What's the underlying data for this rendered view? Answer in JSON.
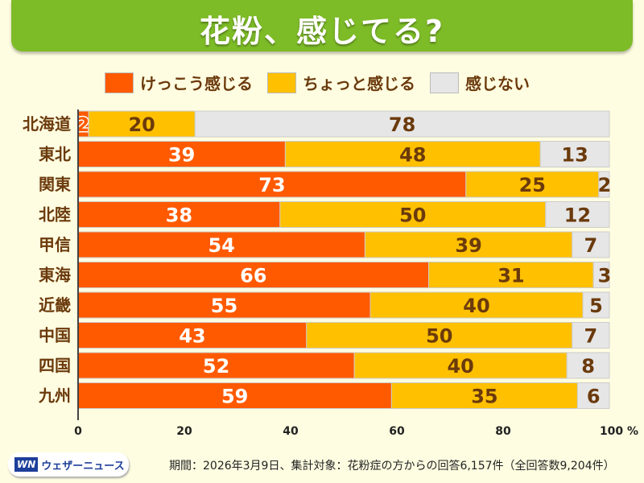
{
  "title": "花粉、感じてる?",
  "chart_data": {
    "type": "bar",
    "orientation": "horizontal",
    "stacked": true,
    "categories": [
      "北海道",
      "東北",
      "関東",
      "北陸",
      "甲信",
      "東海",
      "近畿",
      "中国",
      "四国",
      "九州"
    ],
    "series": [
      {
        "name": "けっこう感じる",
        "color": "#ff5a00",
        "values": [
          2,
          39,
          73,
          38,
          54,
          66,
          55,
          43,
          52,
          59
        ]
      },
      {
        "name": "ちょっと感じる",
        "color": "#ffc000",
        "values": [
          20,
          48,
          25,
          50,
          39,
          31,
          40,
          50,
          40,
          35
        ]
      },
      {
        "name": "感じない",
        "color": "#e6e6e6",
        "values": [
          78,
          13,
          2,
          12,
          7,
          3,
          5,
          7,
          8,
          6
        ]
      }
    ],
    "xlim": [
      0,
      100
    ],
    "xticks": [
      "0",
      "20",
      "40",
      "60",
      "80",
      "100 %"
    ],
    "legend": "top"
  },
  "footer": {
    "logo": "ウェザーニュース",
    "logo_mark": "WN",
    "note": "期間：2026年3月9日、集計対象：花粉症の方からの回答6,157件（全回答数9,204件）"
  }
}
